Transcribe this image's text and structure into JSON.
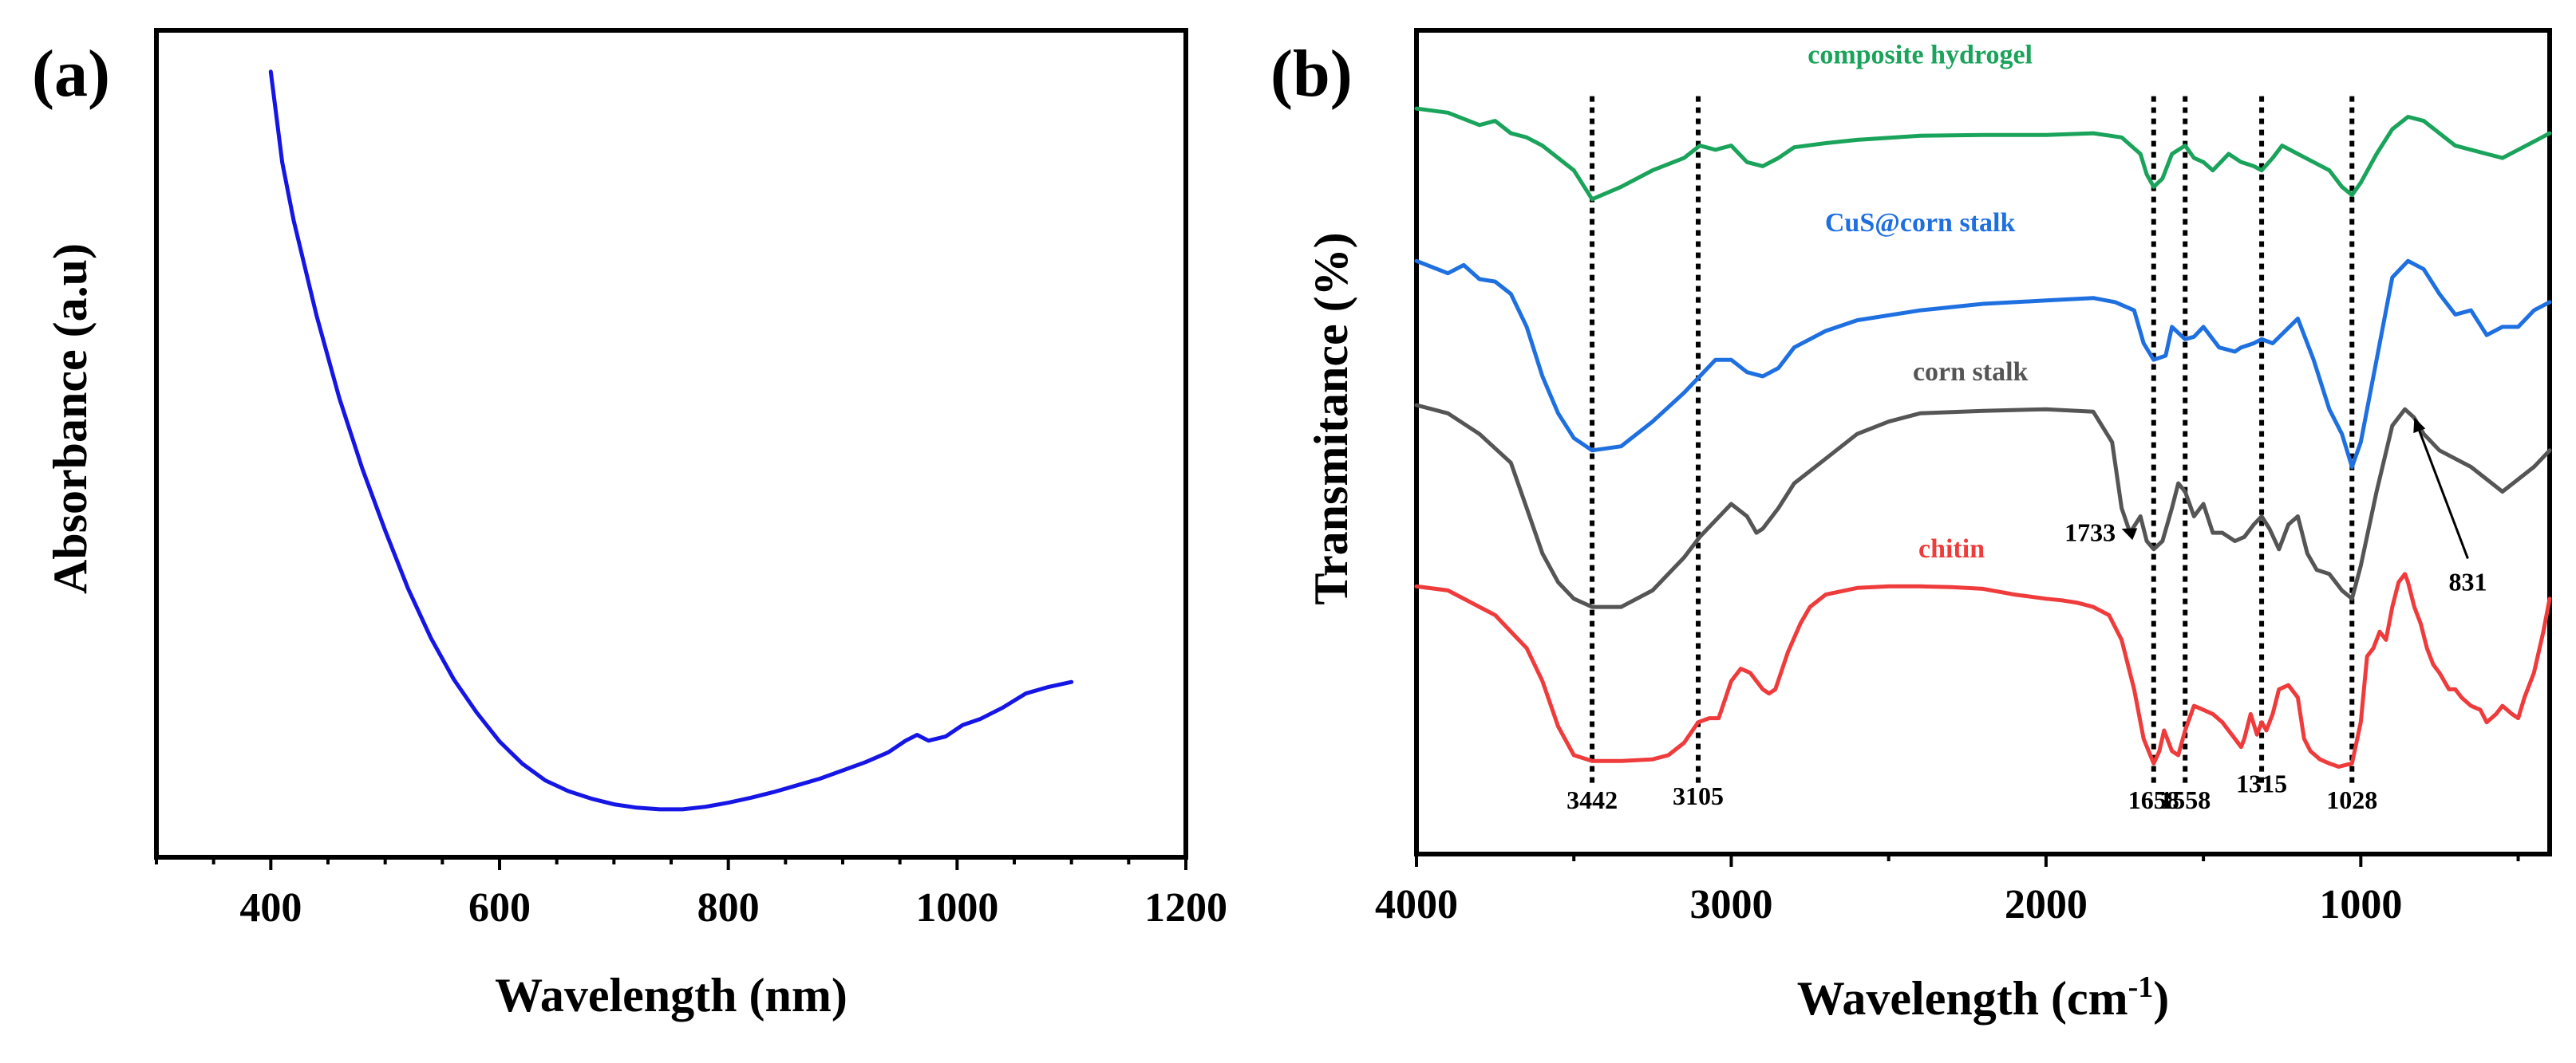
{
  "chart_data": [
    {
      "panel_label": "(a)",
      "type": "line",
      "title": "",
      "xlabel": "Wavelength (nm)",
      "ylabel": "Absorbance (a.u)",
      "xlim": [
        300,
        1200
      ],
      "ylim": [
        0,
        1
      ],
      "xticks": [
        400,
        600,
        800,
        1000,
        1200
      ],
      "xtick_labels": [
        "400",
        "600",
        "800",
        "1000",
        "1200"
      ],
      "y_tick_labels_shown": false,
      "grid": false,
      "series": [
        {
          "name": "absorbance",
          "color": "#1515e6",
          "x": [
            400,
            410,
            420,
            440,
            460,
            480,
            500,
            520,
            540,
            560,
            580,
            600,
            620,
            640,
            660,
            680,
            700,
            720,
            740,
            760,
            780,
            800,
            820,
            840,
            860,
            880,
            900,
            920,
            940,
            955,
            965,
            975,
            990,
            1005,
            1020,
            1040,
            1060,
            1080,
            1100
          ],
          "y": [
            0.95,
            0.84,
            0.77,
            0.655,
            0.555,
            0.47,
            0.395,
            0.325,
            0.265,
            0.215,
            0.175,
            0.14,
            0.113,
            0.093,
            0.08,
            0.071,
            0.064,
            0.06,
            0.058,
            0.058,
            0.061,
            0.066,
            0.072,
            0.079,
            0.087,
            0.095,
            0.105,
            0.115,
            0.127,
            0.141,
            0.148,
            0.141,
            0.146,
            0.16,
            0.167,
            0.181,
            0.198,
            0.206,
            0.212
          ]
        }
      ]
    },
    {
      "panel_label": "(b)",
      "type": "line",
      "title": "",
      "xlabel": "Wavelength (cm",
      "xlabel_superscript": "-1",
      "xlabel_close": ")",
      "ylabel": "Transmitance (%)",
      "xlim": [
        4000,
        400
      ],
      "ylim": [
        0,
        1
      ],
      "xticks": [
        4000,
        3000,
        2000,
        1000
      ],
      "xtick_labels": [
        "4000",
        "3000",
        "2000",
        "1000"
      ],
      "y_tick_labels_shown": false,
      "grid": false,
      "series": [
        {
          "name": "composite hydrogel",
          "color": "#1aa35a",
          "x": [
            4000,
            3900,
            3800,
            3750,
            3700,
            3650,
            3600,
            3500,
            3442,
            3350,
            3250,
            3150,
            3100,
            3050,
            3000,
            2950,
            2900,
            2850,
            2800,
            2700,
            2600,
            2400,
            2200,
            2000,
            1850,
            1760,
            1700,
            1680,
            1658,
            1630,
            1600,
            1558,
            1530,
            1500,
            1470,
            1420,
            1380,
            1340,
            1315,
            1280,
            1250,
            1200,
            1150,
            1100,
            1060,
            1028,
            1000,
            950,
            900,
            850,
            800,
            750,
            700,
            650,
            600,
            550,
            500,
            450,
            400
          ],
          "y": [
            0.905,
            0.9,
            0.885,
            0.89,
            0.875,
            0.87,
            0.86,
            0.83,
            0.795,
            0.81,
            0.83,
            0.845,
            0.86,
            0.855,
            0.86,
            0.84,
            0.835,
            0.845,
            0.858,
            0.863,
            0.867,
            0.872,
            0.873,
            0.873,
            0.875,
            0.87,
            0.85,
            0.825,
            0.81,
            0.82,
            0.85,
            0.86,
            0.845,
            0.84,
            0.83,
            0.85,
            0.84,
            0.835,
            0.83,
            0.845,
            0.86,
            0.85,
            0.84,
            0.83,
            0.81,
            0.8,
            0.815,
            0.85,
            0.88,
            0.895,
            0.89,
            0.875,
            0.86,
            0.855,
            0.85,
            0.845,
            0.855,
            0.865,
            0.875
          ]
        },
        {
          "name": "CuS@corn stalk",
          "color": "#1e6fe0",
          "x": [
            4000,
            3900,
            3850,
            3800,
            3750,
            3700,
            3650,
            3600,
            3550,
            3500,
            3442,
            3350,
            3250,
            3150,
            3100,
            3050,
            3000,
            2950,
            2900,
            2850,
            2800,
            2700,
            2600,
            2400,
            2200,
            2000,
            1850,
            1780,
            1720,
            1690,
            1658,
            1620,
            1600,
            1558,
            1530,
            1500,
            1450,
            1400,
            1380,
            1340,
            1315,
            1280,
            1240,
            1200,
            1150,
            1100,
            1060,
            1028,
            1000,
            950,
            900,
            850,
            800,
            750,
            700,
            650,
            600,
            550,
            500,
            450,
            400
          ],
          "y": [
            0.72,
            0.705,
            0.715,
            0.698,
            0.695,
            0.68,
            0.64,
            0.58,
            0.535,
            0.505,
            0.49,
            0.495,
            0.525,
            0.56,
            0.58,
            0.6,
            0.6,
            0.585,
            0.58,
            0.59,
            0.615,
            0.635,
            0.648,
            0.66,
            0.668,
            0.672,
            0.675,
            0.67,
            0.66,
            0.62,
            0.6,
            0.605,
            0.64,
            0.625,
            0.628,
            0.64,
            0.615,
            0.61,
            0.615,
            0.62,
            0.625,
            0.62,
            0.635,
            0.65,
            0.6,
            0.54,
            0.51,
            0.47,
            0.5,
            0.6,
            0.7,
            0.72,
            0.71,
            0.68,
            0.655,
            0.66,
            0.63,
            0.64,
            0.64,
            0.66,
            0.67
          ]
        },
        {
          "name": "corn stalk",
          "color": "#555555",
          "x": [
            4000,
            3900,
            3800,
            3700,
            3650,
            3600,
            3550,
            3500,
            3442,
            3350,
            3250,
            3150,
            3100,
            3050,
            3000,
            2950,
            2920,
            2900,
            2850,
            2800,
            2700,
            2600,
            2500,
            2400,
            2200,
            2000,
            1850,
            1790,
            1760,
            1733,
            1700,
            1680,
            1658,
            1630,
            1600,
            1580,
            1558,
            1530,
            1500,
            1470,
            1440,
            1400,
            1370,
            1340,
            1315,
            1290,
            1260,
            1230,
            1200,
            1170,
            1140,
            1100,
            1060,
            1028,
            1000,
            950,
            900,
            860,
            831,
            800,
            750,
            700,
            650,
            600,
            550,
            500,
            450,
            400
          ],
          "y": [
            0.545,
            0.535,
            0.51,
            0.475,
            0.42,
            0.365,
            0.33,
            0.31,
            0.3,
            0.3,
            0.32,
            0.36,
            0.385,
            0.405,
            0.425,
            0.41,
            0.39,
            0.395,
            0.42,
            0.45,
            0.48,
            0.51,
            0.525,
            0.535,
            0.538,
            0.54,
            0.537,
            0.5,
            0.42,
            0.39,
            0.41,
            0.38,
            0.37,
            0.38,
            0.42,
            0.45,
            0.44,
            0.41,
            0.425,
            0.39,
            0.39,
            0.38,
            0.385,
            0.4,
            0.41,
            0.395,
            0.37,
            0.4,
            0.41,
            0.365,
            0.345,
            0.34,
            0.32,
            0.31,
            0.35,
            0.44,
            0.52,
            0.54,
            0.53,
            0.51,
            0.49,
            0.48,
            0.47,
            0.455,
            0.44,
            0.455,
            0.47,
            0.49
          ]
        },
        {
          "name": "chitin",
          "color": "#ef3b3b",
          "x": [
            4000,
            3900,
            3800,
            3750,
            3700,
            3650,
            3600,
            3550,
            3500,
            3442,
            3350,
            3250,
            3200,
            3150,
            3105,
            3070,
            3040,
            3000,
            2970,
            2940,
            2900,
            2880,
            2860,
            2820,
            2780,
            2750,
            2700,
            2600,
            2500,
            2400,
            2300,
            2200,
            2100,
            2000,
            1950,
            1900,
            1850,
            1800,
            1760,
            1720,
            1690,
            1658,
            1640,
            1625,
            1600,
            1580,
            1558,
            1530,
            1500,
            1470,
            1440,
            1410,
            1380,
            1370,
            1350,
            1330,
            1315,
            1300,
            1280,
            1260,
            1230,
            1200,
            1180,
            1160,
            1130,
            1100,
            1070,
            1050,
            1028,
            1000,
            980,
            960,
            940,
            920,
            900,
            880,
            860,
            850,
            830,
            810,
            790,
            770,
            750,
            720,
            700,
            680,
            650,
            620,
            600,
            570,
            550,
            520,
            500,
            480,
            450,
            420,
            400
          ],
          "y": [
            0.325,
            0.32,
            0.3,
            0.29,
            0.27,
            0.25,
            0.21,
            0.155,
            0.12,
            0.113,
            0.113,
            0.115,
            0.12,
            0.135,
            0.16,
            0.165,
            0.165,
            0.21,
            0.225,
            0.22,
            0.2,
            0.195,
            0.2,
            0.245,
            0.28,
            0.3,
            0.315,
            0.323,
            0.325,
            0.325,
            0.324,
            0.322,
            0.315,
            0.31,
            0.308,
            0.305,
            0.3,
            0.29,
            0.26,
            0.2,
            0.14,
            0.11,
            0.125,
            0.15,
            0.125,
            0.12,
            0.15,
            0.18,
            0.175,
            0.17,
            0.16,
            0.145,
            0.13,
            0.14,
            0.17,
            0.145,
            0.16,
            0.15,
            0.17,
            0.2,
            0.205,
            0.19,
            0.14,
            0.125,
            0.115,
            0.11,
            0.106,
            0.108,
            0.11,
            0.16,
            0.24,
            0.25,
            0.27,
            0.26,
            0.3,
            0.33,
            0.34,
            0.33,
            0.3,
            0.28,
            0.25,
            0.23,
            0.22,
            0.2,
            0.2,
            0.19,
            0.18,
            0.175,
            0.16,
            0.17,
            0.18,
            0.17,
            0.165,
            0.19,
            0.22,
            0.27,
            0.31
          ]
        }
      ],
      "series_labels": [
        {
          "text": "composite hydrogel",
          "color": "#1aa35a",
          "x": 2400,
          "y": 0.96
        },
        {
          "text": "CuS@corn stalk",
          "color": "#1e6fe0",
          "x": 2400,
          "y": 0.756
        },
        {
          "text": "corn stalk",
          "color": "#555555",
          "x": 2240,
          "y": 0.575
        },
        {
          "text": "chitin",
          "color": "#ef3b3b",
          "x": 2300,
          "y": 0.36
        }
      ],
      "reference_lines_at": [
        3442,
        3105,
        1658,
        1558,
        1315,
        1028
      ],
      "peak_labels": [
        {
          "text": "3442",
          "x": 3442,
          "y": 0.055
        },
        {
          "text": "3105",
          "x": 3105,
          "y": 0.06
        },
        {
          "text": "1658",
          "x": 1658,
          "y": 0.055
        },
        {
          "text": "1558",
          "x": 1558,
          "y": 0.055
        },
        {
          "text": "1315",
          "x": 1315,
          "y": 0.075
        },
        {
          "text": "1028",
          "x": 1028,
          "y": 0.055
        }
      ],
      "annotations": [
        {
          "text": "1733",
          "label_x": 1860,
          "label_y": 0.38,
          "arrow_to_x": 1760,
          "arrow_to_y": 0.395
        },
        {
          "text": "831",
          "label_x": 660,
          "label_y": 0.32,
          "arrow_to_x": 830,
          "arrow_to_y": 0.53
        }
      ]
    }
  ]
}
